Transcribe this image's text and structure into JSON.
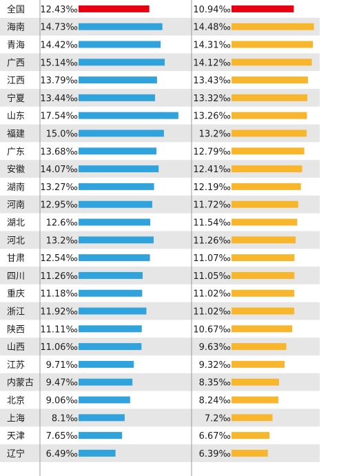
{
  "chart_data": {
    "type": "bar",
    "categories": [
      "全国",
      "海南",
      "青海",
      "广西",
      "江西",
      "宁夏",
      "山东",
      "福建",
      "广东",
      "安徽",
      "湖南",
      "河南",
      "湖北",
      "河北",
      "甘肃",
      "四川",
      "重庆",
      "浙江",
      "陕西",
      "山西",
      "江苏",
      "内蒙古",
      "北京",
      "上海",
      "天津",
      "辽宁"
    ],
    "series": [
      {
        "values": [
          12.43,
          14.73,
          14.42,
          15.14,
          13.79,
          13.44,
          17.54,
          15.0,
          13.68,
          14.07,
          13.27,
          12.95,
          12.6,
          13.2,
          12.54,
          11.26,
          11.18,
          11.92,
          11.11,
          11.06,
          9.71,
          9.47,
          9.06,
          8.1,
          7.65,
          6.49
        ],
        "labels": [
          "12.43‰",
          "14.73‰",
          "14.42‰",
          "15.14‰",
          "13.79‰",
          "13.44‰",
          "17.54‰",
          "15.0‰",
          "13.68‰",
          "14.07‰",
          "13.27‰",
          "12.95‰",
          "12.6‰",
          "13.2‰",
          "12.54‰",
          "11.26‰",
          "11.18‰",
          "11.92‰",
          "11.11‰",
          "11.06‰",
          "9.71‰",
          "9.47‰",
          "9.06‰",
          "8.1‰",
          "7.65‰",
          "6.49‰"
        ],
        "color": "#31a3dc"
      },
      {
        "values": [
          10.94,
          14.48,
          14.31,
          14.12,
          13.43,
          13.32,
          13.26,
          13.2,
          12.79,
          12.41,
          12.19,
          11.72,
          11.54,
          11.26,
          11.07,
          11.05,
          11.02,
          11.02,
          10.67,
          9.63,
          9.32,
          8.35,
          8.24,
          7.2,
          6.67,
          6.39
        ],
        "labels": [
          "10.94‰",
          "14.48‰",
          "14.31‰",
          "14.12‰",
          "13.43‰",
          "13.32‰",
          "13.26‰",
          "13.2‰",
          "12.79‰",
          "12.41‰",
          "12.19‰",
          "11.72‰",
          "11.54‰",
          "11.26‰",
          "11.07‰",
          "11.05‰",
          "11.02‰",
          "11.02‰",
          "10.67‰",
          "9.63‰",
          "9.32‰",
          "8.35‰",
          "8.24‰",
          "7.2‰",
          "6.67‰",
          "6.39‰"
        ],
        "color": "#f8b62d"
      }
    ],
    "highlight_category": "全国",
    "highlight_color": "#e60012",
    "stripe_color": "#e6e6e6",
    "divider_color": "#9a9a9a",
    "text_color": "#1a1a1a"
  }
}
